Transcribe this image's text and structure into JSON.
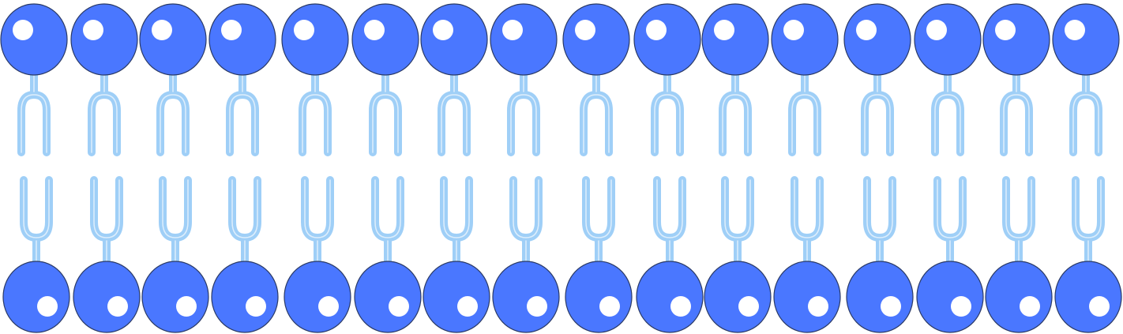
{
  "diagram": {
    "title": "",
    "colors": {
      "head_fill": "#4a77ff",
      "head_stroke": "#2a3a66",
      "highlight": "#ffffff",
      "tail": "#9fcff7",
      "tail_edge": "#e4f1fc",
      "background": "#ffffff"
    },
    "top_leaflet": {
      "phospholipid_count": 16
    },
    "bottom_leaflet": {
      "phospholipid_count": 16
    }
  }
}
